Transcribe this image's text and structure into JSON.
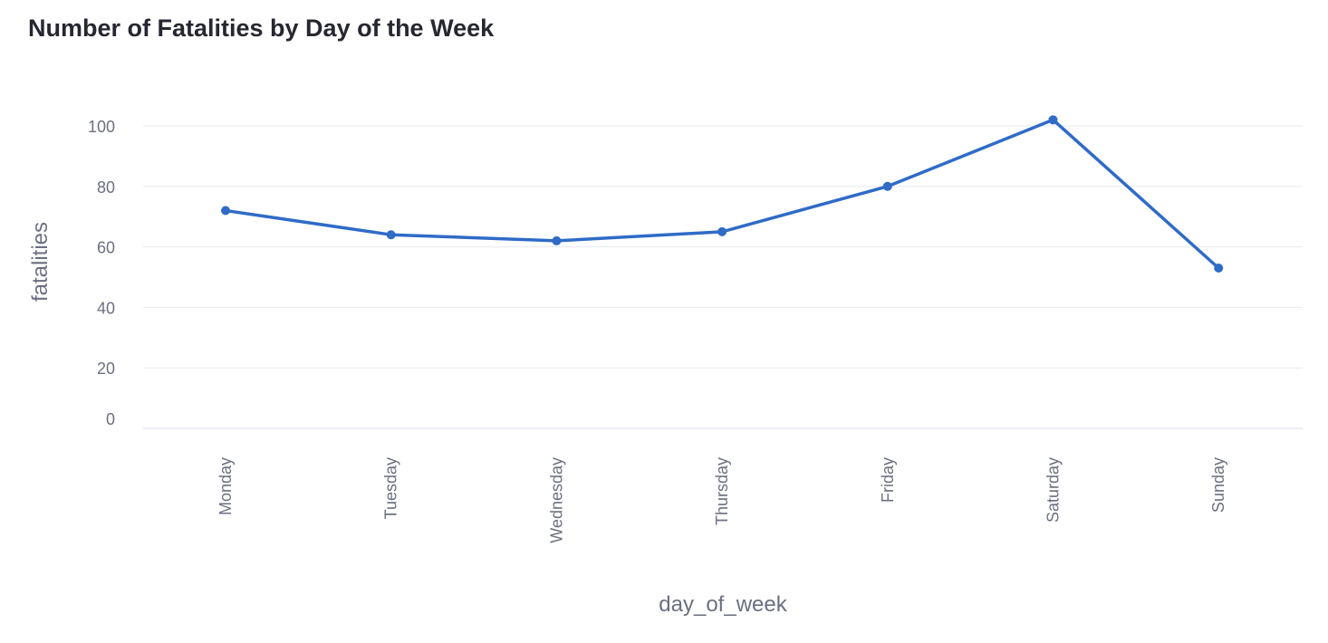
{
  "chart_data": {
    "type": "line",
    "title": "Number of Fatalities by Day of the Week",
    "xlabel": "day_of_week",
    "ylabel": "fatalities",
    "categories": [
      "Monday",
      "Tuesday",
      "Wednesday",
      "Thursday",
      "Friday",
      "Saturday",
      "Sunday"
    ],
    "values": [
      72,
      64,
      62,
      65,
      80,
      102,
      53
    ],
    "yticks": [
      0,
      20,
      40,
      60,
      80,
      100
    ],
    "ylim": [
      0,
      110
    ],
    "grid": true,
    "line_color": "#2f6bc7",
    "grid_color": "#e6e9ef"
  }
}
